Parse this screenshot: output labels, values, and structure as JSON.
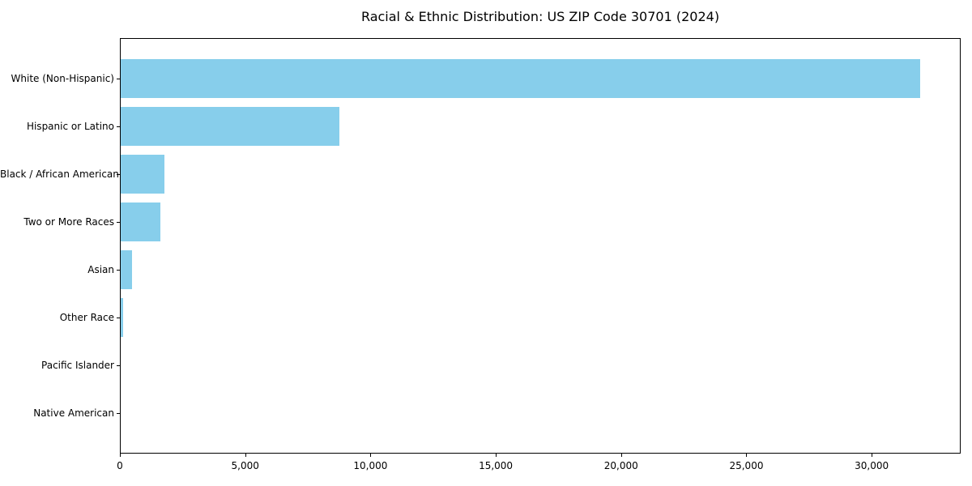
{
  "chart_data": {
    "type": "bar",
    "orientation": "horizontal",
    "title": "Racial & Ethnic Distribution: US ZIP Code 30701 (2024)",
    "categories": [
      "White (Non-Hispanic)",
      "Hispanic or Latino",
      "Black / African American",
      "Two or More Races",
      "Asian",
      "Other Race",
      "Pacific Islander",
      "Native American"
    ],
    "values": [
      31940,
      8770,
      1770,
      1620,
      500,
      130,
      30,
      10
    ],
    "xlabel": "",
    "ylabel": "",
    "xlim": [
      0,
      33550
    ],
    "xticks": [
      0,
      5000,
      10000,
      15000,
      20000,
      25000,
      30000
    ],
    "xtick_labels": [
      "0",
      "5,000",
      "10,000",
      "15,000",
      "20,000",
      "25,000",
      "30,000"
    ],
    "bar_color": "#87CEEB",
    "axis_color": "#000000",
    "text_color": "#000000",
    "background_color": "#ffffff",
    "grid": false,
    "legend_position": "none"
  }
}
